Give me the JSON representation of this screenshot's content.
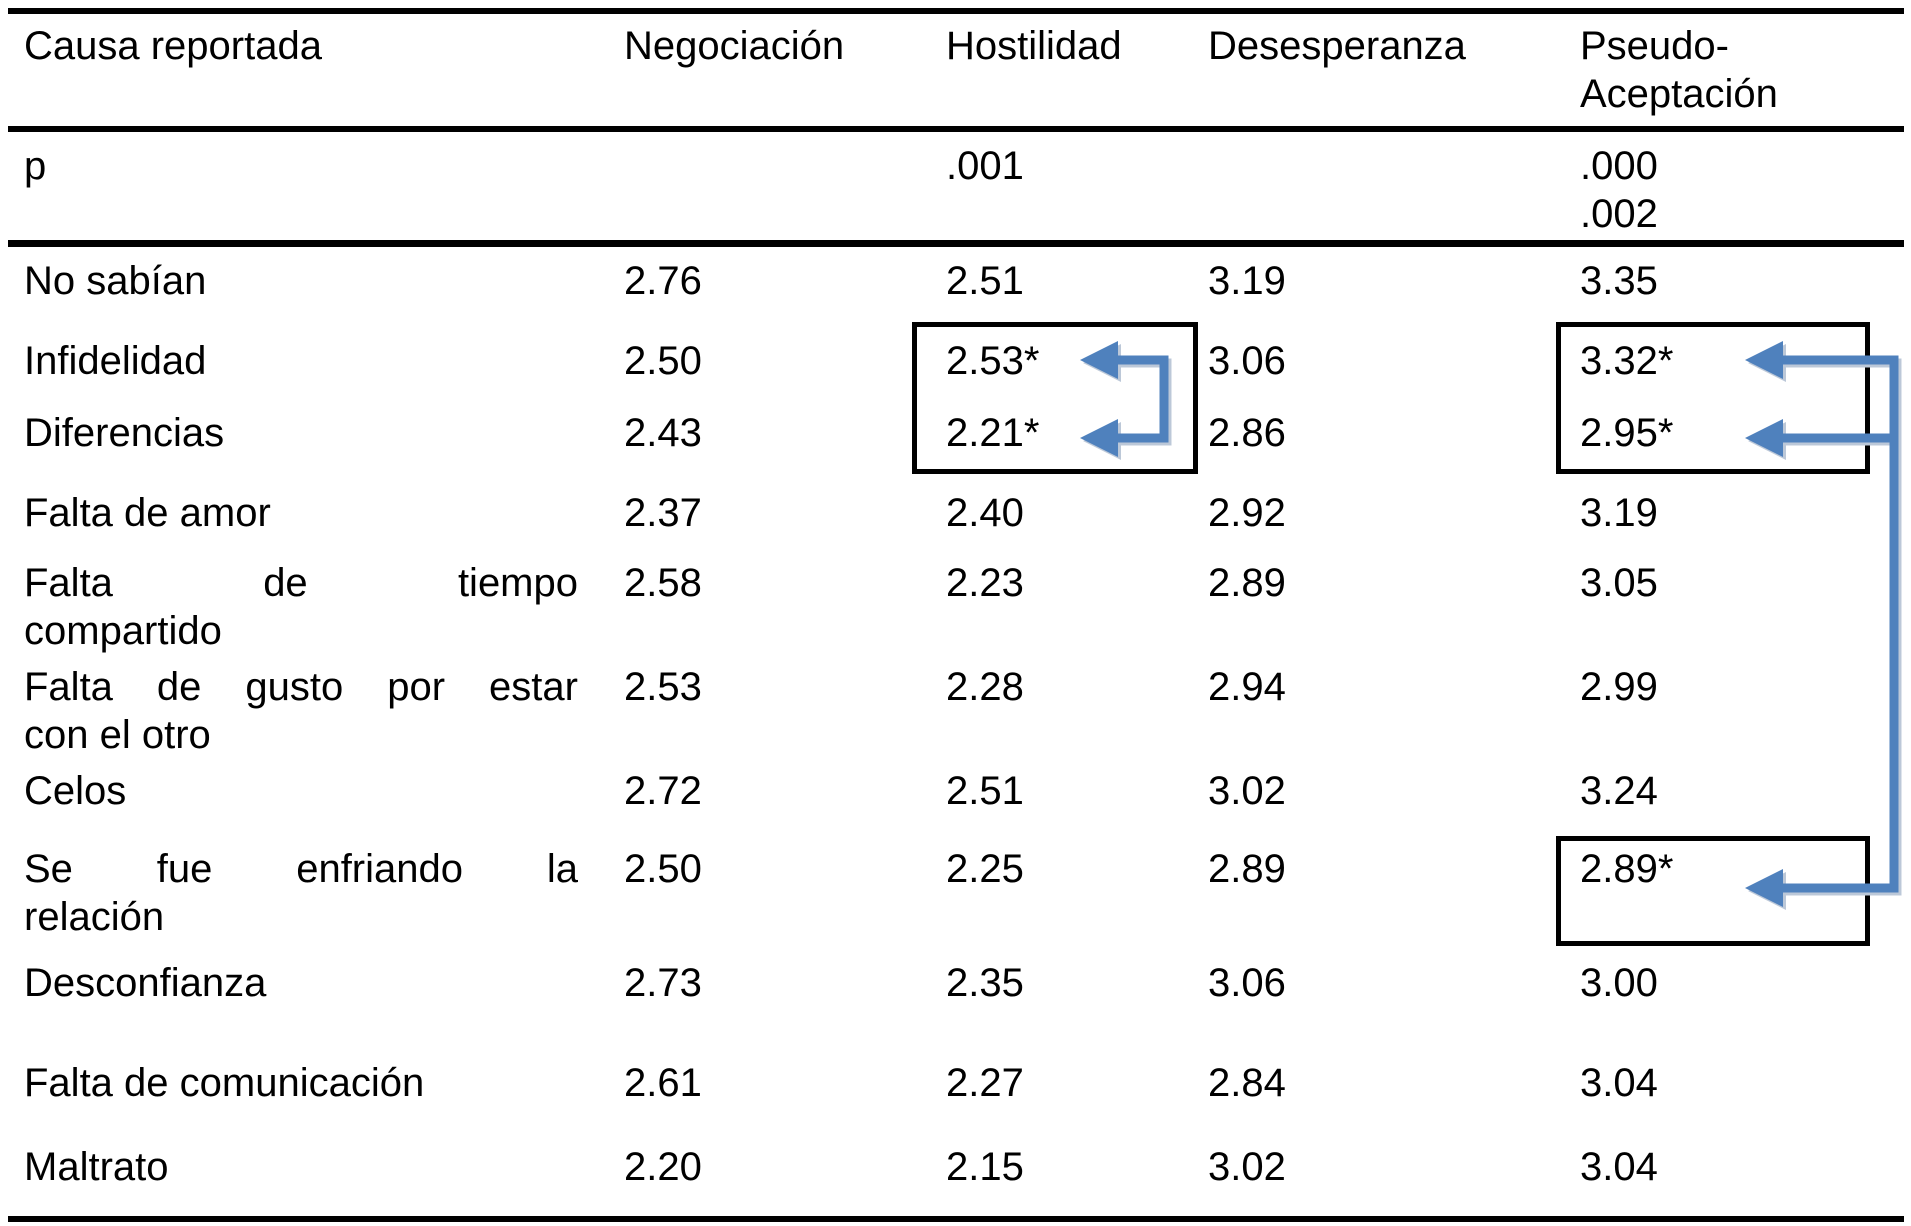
{
  "table": {
    "header": [
      "Causa reportada",
      "Negociación",
      "Hostilidad",
      "Desesperanza",
      "Pseudo-\nAceptación"
    ],
    "p_row": {
      "label": "p",
      "values": [
        "",
        ".001",
        "",
        ".000\n.002"
      ]
    },
    "rows": [
      {
        "label": "No sabían",
        "values": [
          "2.76",
          "2.51",
          "3.19",
          "3.35"
        ]
      },
      {
        "label": "Infidelidad",
        "values": [
          "2.50",
          "2.53*",
          "3.06",
          "3.32*"
        ]
      },
      {
        "label": "Diferencias",
        "values": [
          "2.43",
          "2.21*",
          "2.86",
          "2.95*"
        ]
      },
      {
        "label": "Falta de amor",
        "values": [
          "2.37",
          "2.40",
          "2.92",
          "3.19"
        ]
      },
      {
        "label": "Falta de tiempo compartido",
        "break_index": 3,
        "values": [
          "2.58",
          "2.23",
          "2.89",
          "3.05"
        ]
      },
      {
        "label": "Falta de gusto por estar con el otro",
        "break_index": 5,
        "values": [
          "2.53",
          "2.28",
          "2.94",
          "2.99"
        ]
      },
      {
        "label": "Celos",
        "values": [
          "2.72",
          "2.51",
          "3.02",
          "3.24"
        ]
      },
      {
        "label": "Se fue enfriando la relación",
        "break_index": 4,
        "values": [
          "2.50",
          "2.25",
          "2.89",
          "2.89*"
        ]
      },
      {
        "label": "Desconfianza",
        "values": [
          "2.73",
          "2.35",
          "3.06",
          "3.00"
        ]
      },
      {
        "label": "Falta de comunicación",
        "values": [
          "2.61",
          "2.27",
          "2.84",
          "3.04"
        ]
      },
      {
        "label": "Maltrato",
        "values": [
          "2.20",
          "2.15",
          "3.02",
          "3.04"
        ]
      }
    ]
  },
  "annotations": {
    "box_color": "#000000",
    "arrow_color": "#4f81bd",
    "comparisons": [
      {
        "column": "Hostilidad",
        "linked_values": [
          "2.53*",
          "2.21*"
        ]
      },
      {
        "column": "Pseudo-Aceptación",
        "linked_values": [
          "3.32*",
          "2.95*",
          "2.89*"
        ]
      }
    ]
  }
}
